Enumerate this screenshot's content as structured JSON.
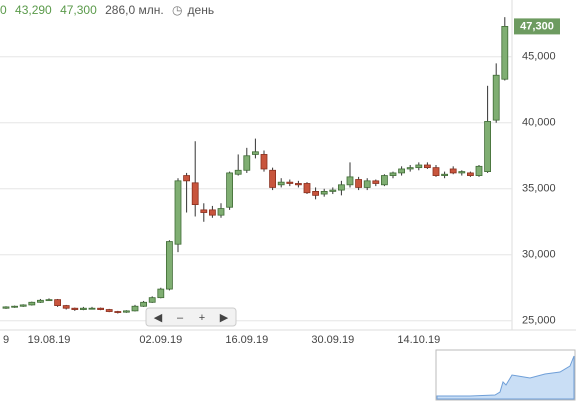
{
  "chart_data": {
    "type": "candlestick",
    "header": {
      "stats": [
        "0",
        "43,290",
        "47,300",
        "286,0 млн."
      ],
      "period": "день"
    },
    "categories": [
      "9",
      null,
      null,
      null,
      null,
      "19.08.19",
      null,
      null,
      null,
      null,
      null,
      null,
      null,
      null,
      null,
      null,
      null,
      null,
      "02.09.19",
      null,
      null,
      null,
      null,
      null,
      null,
      null,
      null,
      null,
      "16.09.19",
      null,
      null,
      null,
      null,
      null,
      null,
      null,
      null,
      null,
      "30.09.19",
      null,
      null,
      null,
      null,
      null,
      null,
      null,
      null,
      null,
      "14.10.19",
      null,
      null,
      null,
      null,
      null,
      null,
      null,
      null,
      null,
      null
    ],
    "open": [
      25950,
      26050,
      26100,
      26200,
      26400,
      26550,
      26600,
      26150,
      25950,
      25850,
      25950,
      25950,
      25850,
      25700,
      25650,
      25750,
      26100,
      26400,
      26750,
      27400,
      30800,
      36000,
      35450,
      33400,
      33400,
      33000,
      33600,
      36100,
      36400,
      37600,
      37600,
      36400,
      35300,
      35500,
      35400,
      35400,
      34800,
      34600,
      34800,
      34900,
      35300,
      35700,
      35100,
      35600,
      35300,
      36000,
      36200,
      36500,
      36600,
      36800,
      36600,
      36000,
      36500,
      36200,
      36200,
      36000,
      36300,
      40200,
      43300
    ],
    "high": [
      26100,
      26150,
      26250,
      26450,
      26650,
      26700,
      26650,
      26200,
      26000,
      26050,
      26050,
      26000,
      25900,
      25750,
      25800,
      26200,
      26500,
      26850,
      27500,
      31100,
      35800,
      36200,
      38600,
      33900,
      33700,
      33900,
      36300,
      37600,
      38100,
      38800,
      37900,
      36600,
      35800,
      35700,
      35600,
      35500,
      35100,
      35000,
      35100,
      35600,
      37000,
      35900,
      35800,
      35700,
      36100,
      36300,
      36700,
      36800,
      37000,
      37000,
      36800,
      36300,
      36700,
      36400,
      36300,
      36800,
      42800,
      44500,
      48000
    ],
    "low": [
      25900,
      25980,
      26050,
      26150,
      26350,
      26500,
      26050,
      25850,
      25750,
      25800,
      25850,
      25800,
      25650,
      25550,
      25600,
      25700,
      26050,
      26350,
      26700,
      27300,
      30200,
      33200,
      32900,
      32500,
      32800,
      32800,
      33400,
      36000,
      36200,
      37300,
      36300,
      34900,
      35100,
      35200,
      35100,
      34600,
      34200,
      34400,
      34600,
      34500,
      35100,
      34900,
      34900,
      35200,
      35200,
      35800,
      36000,
      36300,
      36400,
      36500,
      35900,
      35800,
      36100,
      36000,
      35900,
      35900,
      36200,
      40000,
      43200
    ],
    "close": [
      26050,
      26100,
      26200,
      26400,
      26550,
      26600,
      26150,
      25950,
      25850,
      25950,
      25950,
      25850,
      25700,
      25650,
      25750,
      26100,
      26400,
      26750,
      27400,
      31000,
      35600,
      35600,
      33800,
      33200,
      33000,
      33500,
      36200,
      36400,
      37500,
      37800,
      36500,
      35100,
      35500,
      35400,
      35300,
      34700,
      34500,
      34800,
      34900,
      35300,
      35900,
      35100,
      35600,
      35400,
      36000,
      36200,
      36500,
      36600,
      36800,
      36600,
      36000,
      36100,
      36200,
      36300,
      36000,
      36700,
      40100,
      43600,
      47300
    ],
    "up_color": "#7fae72",
    "down_color": "#c8553d",
    "last_price_label": "47,300",
    "last_price_color": "#6d9b60",
    "ylim": [
      24300,
      49300
    ],
    "yticks": [
      {
        "value": 25000,
        "label": "25,000"
      },
      {
        "value": 30000,
        "label": "30,000"
      },
      {
        "value": 35000,
        "label": "35,000"
      },
      {
        "value": 40000,
        "label": "40,000"
      },
      {
        "value": 45000,
        "label": "45,000"
      }
    ],
    "grid": true
  }
}
